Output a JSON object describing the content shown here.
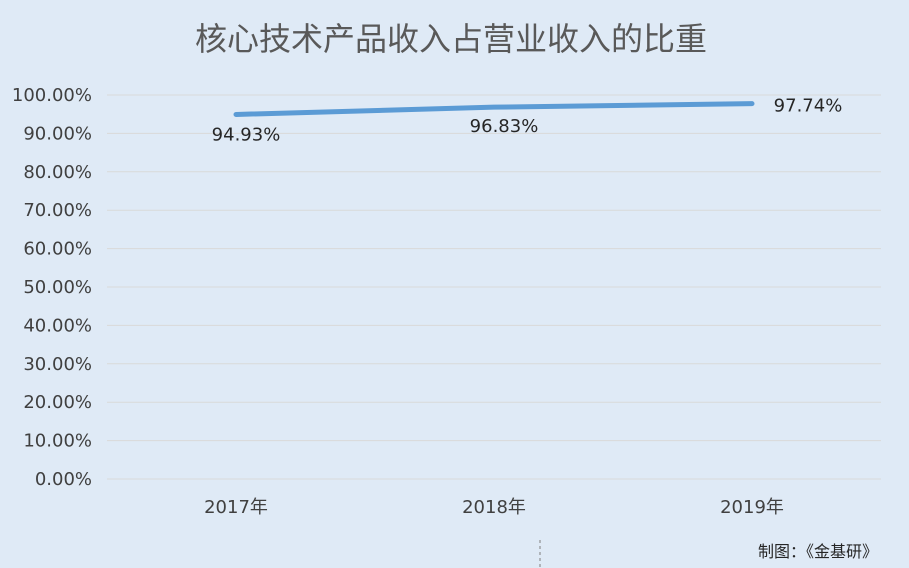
{
  "chart_data": {
    "type": "line",
    "title": "核心技术产品收入占营业收入的比重",
    "categories": [
      "2017年",
      "2018年",
      "2019年"
    ],
    "series": [
      {
        "values": [
          94.93,
          96.83,
          97.74
        ]
      }
    ],
    "data_labels": [
      "94.93%",
      "96.83%",
      "97.74%"
    ],
    "yticks": [
      "0.00%",
      "10.00%",
      "20.00%",
      "30.00%",
      "40.00%",
      "50.00%",
      "60.00%",
      "70.00%",
      "80.00%",
      "90.00%",
      "100.00%"
    ],
    "ylim": [
      0,
      100
    ],
    "grid": true,
    "legend": "none",
    "line_color": "#5b9bd5",
    "grid_color": "#d9d9d9"
  },
  "footer": {
    "credit": "制图：《金基研》"
  }
}
